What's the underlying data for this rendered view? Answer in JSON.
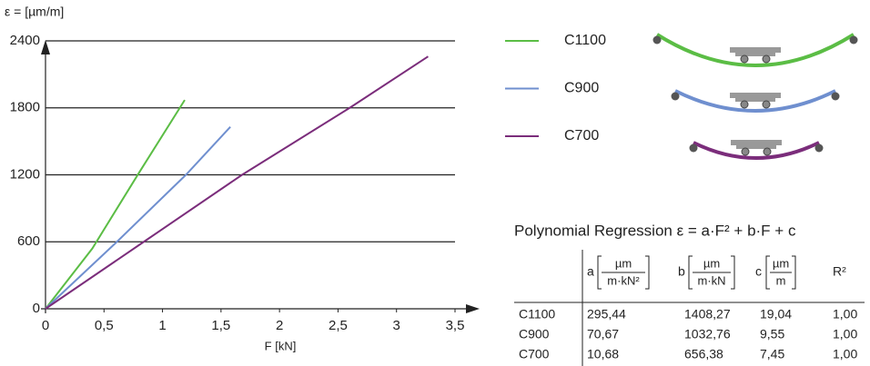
{
  "chart_data": {
    "type": "line",
    "y_label": "ε = [µm/m]",
    "x_label": "F [kN]",
    "xlim": [
      0,
      3.5
    ],
    "ylim": [
      0,
      2400
    ],
    "xticks": [
      0,
      {
        "value": 0.5,
        "label": "0,5"
      },
      1,
      {
        "value": 1.5,
        "label": "1,5"
      },
      2,
      {
        "value": 2.5,
        "label": "2,5"
      },
      3,
      {
        "value": 3.5,
        "label": "3,5"
      }
    ],
    "yticks": [
      0,
      600,
      1200,
      1800,
      2400
    ],
    "grid": true,
    "series": [
      {
        "name": "C1100",
        "color": "#5bbd45",
        "x": [
          0,
          0.4,
          0.8,
          1.19
        ],
        "values": [
          0,
          540,
          1220,
          1870
        ]
      },
      {
        "name": "C900",
        "color": "#6f8fcf",
        "x": [
          0,
          0.6,
          1.2,
          1.58
        ],
        "values": [
          0,
          590,
          1200,
          1630
        ]
      },
      {
        "name": "C700",
        "color": "#7b2d7b",
        "x": [
          0,
          0.84,
          1.68,
          2.6,
          3.27
        ],
        "values": [
          0,
          600,
          1200,
          1800,
          2260
        ]
      }
    ]
  },
  "table": {
    "title": "Polynomial Regression  ε = a·F² + b·F + c",
    "headers": [
      {
        "letter": "a",
        "num": "µm",
        "den": "m·kN²"
      },
      {
        "letter": "b",
        "num": "µm",
        "den": "m·kN"
      },
      {
        "letter": "c",
        "num": "µm",
        "den": "m"
      },
      {
        "letter": "R²"
      }
    ],
    "rows": [
      [
        "C1100",
        "295,44",
        "1408,27",
        "19,04",
        "1,00"
      ],
      [
        "C900",
        "70,67",
        "1032,76",
        "9,55",
        "1,00"
      ],
      [
        "C700",
        "10,68",
        "656,38",
        "7,45",
        "1,00"
      ]
    ]
  }
}
